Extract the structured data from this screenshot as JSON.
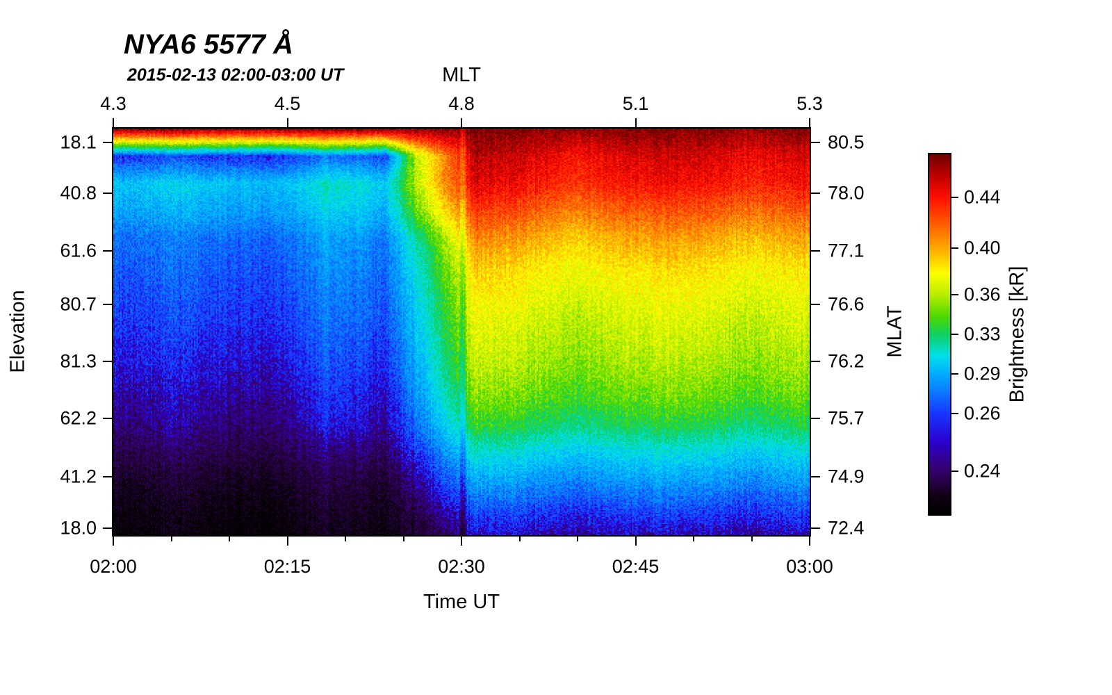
{
  "title": "NYA6 5577 Å",
  "subtitle": "2015-02-13 02:00-03:00 UT",
  "axes": {
    "top": {
      "label": "MLT",
      "ticks": [
        "4.3",
        "4.5",
        "4.8",
        "5.1",
        "5.3"
      ],
      "fracs": [
        0,
        0.25,
        0.5,
        0.75,
        1
      ]
    },
    "bottom": {
      "label": "Time UT",
      "ticks": [
        "02:00",
        "02:15",
        "02:30",
        "02:45",
        "03:00"
      ],
      "fracs": [
        0,
        0.25,
        0.5,
        0.75,
        1
      ]
    },
    "left": {
      "label": "Elevation",
      "ticks": [
        "18.1",
        "40.8",
        "61.6",
        "80.7",
        "81.3",
        "62.2",
        "41.2",
        "18.0"
      ],
      "fracs": [
        0.034,
        0.159,
        0.3,
        0.433,
        0.573,
        0.713,
        0.856,
        0.983
      ]
    },
    "right": {
      "label": "MLAT",
      "ticks": [
        "80.5",
        "78.0",
        "77.1",
        "76.6",
        "76.2",
        "75.7",
        "74.9",
        "72.4"
      ],
      "fracs": [
        0.034,
        0.159,
        0.3,
        0.433,
        0.573,
        0.713,
        0.856,
        0.983
      ]
    }
  },
  "colorbar": {
    "label": "Brightness [kR]",
    "ticks": [
      {
        "label": "0.44",
        "frac_top": 0.12
      },
      {
        "label": "0.40",
        "frac_top": 0.26
      },
      {
        "label": "0.36",
        "frac_top": 0.39
      },
      {
        "label": "0.33",
        "frac_top": 0.5
      },
      {
        "label": "0.29",
        "frac_top": 0.61
      },
      {
        "label": "0.26",
        "frac_top": 0.72
      },
      {
        "label": "0.24",
        "frac_top": 0.88
      }
    ]
  },
  "chart_data": {
    "type": "heatmap",
    "title": "NYA6 5577 Å",
    "subtitle": "2015-02-13 02:00-03:00 UT",
    "value_label": "Brightness [kR]",
    "x_axis": {
      "label": "Time UT",
      "start": "02:00",
      "end": "03:00",
      "mlt_start": 4.3,
      "mlt_end": 5.3
    },
    "y_axis": {
      "label": "Elevation",
      "tick_labels": [
        "18.1",
        "40.8",
        "61.6",
        "80.7",
        "81.3",
        "62.2",
        "41.2",
        "18.0"
      ],
      "mlat_tick_labels": [
        "80.5",
        "78.0",
        "77.1",
        "76.6",
        "76.2",
        "75.7",
        "74.9",
        "72.4"
      ]
    },
    "value_anchors": [
      [
        0.205,
        0
      ],
      [
        0.22,
        0.06
      ],
      [
        0.24,
        0.12
      ],
      [
        0.26,
        0.28
      ],
      [
        0.29,
        0.39
      ],
      [
        0.33,
        0.5
      ],
      [
        0.36,
        0.61
      ],
      [
        0.4,
        0.74
      ],
      [
        0.44,
        0.88
      ],
      [
        0.475,
        1
      ]
    ],
    "colormap": [
      [
        0,
        "#000000"
      ],
      [
        0.05,
        "#120016"
      ],
      [
        0.12,
        "#35006a"
      ],
      [
        0.2,
        "#2b00cf"
      ],
      [
        0.28,
        "#1736ff"
      ],
      [
        0.34,
        "#0b7bff"
      ],
      [
        0.39,
        "#00acff"
      ],
      [
        0.44,
        "#00e0e8"
      ],
      [
        0.5,
        "#0fd060"
      ],
      [
        0.55,
        "#4fd800"
      ],
      [
        0.61,
        "#b8ec00"
      ],
      [
        0.67,
        "#fdfd00"
      ],
      [
        0.74,
        "#ffa800"
      ],
      [
        0.81,
        "#ff5a00"
      ],
      [
        0.88,
        "#ff1000"
      ],
      [
        0.94,
        "#c00000"
      ],
      [
        1,
        "#700000"
      ]
    ],
    "grid_kR": [
      [
        0.468,
        0.467,
        0.469,
        0.468,
        0.466,
        0.466,
        0.468,
        0.47,
        0.469,
        0.468,
        0.469,
        0.47,
        0.474,
        0.472,
        0.47,
        0.466,
        0.468,
        0.47,
        0.471,
        0.472,
        0.47,
        0.467,
        0.468,
        0.472
      ],
      [
        0.26,
        0.259,
        0.265,
        0.26,
        0.258,
        0.257,
        0.26,
        0.274,
        0.271,
        0.262,
        0.36,
        0.41,
        0.46,
        0.455,
        0.45,
        0.44,
        0.445,
        0.45,
        0.452,
        0.455,
        0.45,
        0.445,
        0.447,
        0.452
      ],
      [
        0.3,
        0.298,
        0.305,
        0.3,
        0.296,
        0.295,
        0.298,
        0.314,
        0.311,
        0.3,
        0.36,
        0.41,
        0.45,
        0.445,
        0.44,
        0.43,
        0.435,
        0.44,
        0.442,
        0.445,
        0.44,
        0.435,
        0.437,
        0.443
      ],
      [
        0.29,
        0.289,
        0.294,
        0.29,
        0.287,
        0.286,
        0.289,
        0.304,
        0.301,
        0.291,
        0.345,
        0.39,
        0.43,
        0.425,
        0.42,
        0.41,
        0.415,
        0.42,
        0.422,
        0.425,
        0.42,
        0.415,
        0.417,
        0.422
      ],
      [
        0.275,
        0.274,
        0.279,
        0.275,
        0.272,
        0.271,
        0.275,
        0.289,
        0.286,
        0.277,
        0.32,
        0.36,
        0.41,
        0.405,
        0.4,
        0.39,
        0.395,
        0.4,
        0.402,
        0.405,
        0.4,
        0.395,
        0.397,
        0.402
      ],
      [
        0.27,
        0.269,
        0.274,
        0.27,
        0.267,
        0.266,
        0.27,
        0.284,
        0.281,
        0.272,
        0.31,
        0.35,
        0.393,
        0.39,
        0.385,
        0.377,
        0.381,
        0.385,
        0.387,
        0.39,
        0.385,
        0.38,
        0.382,
        0.387
      ],
      [
        0.266,
        0.265,
        0.27,
        0.266,
        0.263,
        0.262,
        0.266,
        0.28,
        0.277,
        0.268,
        0.304,
        0.342,
        0.383,
        0.38,
        0.375,
        0.368,
        0.372,
        0.375,
        0.377,
        0.38,
        0.375,
        0.37,
        0.372,
        0.377
      ],
      [
        0.262,
        0.261,
        0.266,
        0.262,
        0.259,
        0.258,
        0.262,
        0.276,
        0.273,
        0.264,
        0.299,
        0.336,
        0.375,
        0.372,
        0.368,
        0.36,
        0.364,
        0.368,
        0.37,
        0.372,
        0.368,
        0.363,
        0.365,
        0.37
      ],
      [
        0.257,
        0.256,
        0.261,
        0.257,
        0.254,
        0.253,
        0.257,
        0.271,
        0.268,
        0.259,
        0.294,
        0.33,
        0.369,
        0.366,
        0.362,
        0.355,
        0.358,
        0.362,
        0.364,
        0.366,
        0.362,
        0.357,
        0.359,
        0.364
      ],
      [
        0.252,
        0.251,
        0.256,
        0.252,
        0.249,
        0.248,
        0.252,
        0.266,
        0.263,
        0.254,
        0.288,
        0.324,
        0.362,
        0.359,
        0.355,
        0.348,
        0.351,
        0.355,
        0.357,
        0.359,
        0.355,
        0.35,
        0.352,
        0.357
      ],
      [
        0.246,
        0.245,
        0.25,
        0.246,
        0.243,
        0.242,
        0.246,
        0.26,
        0.257,
        0.248,
        0.281,
        0.315,
        0.352,
        0.349,
        0.345,
        0.338,
        0.341,
        0.345,
        0.347,
        0.349,
        0.345,
        0.34,
        0.342,
        0.347
      ],
      [
        0.241,
        0.24,
        0.245,
        0.241,
        0.238,
        0.237,
        0.241,
        0.255,
        0.252,
        0.243,
        0.272,
        0.303,
        0.337,
        0.334,
        0.33,
        0.323,
        0.326,
        0.33,
        0.332,
        0.334,
        0.33,
        0.325,
        0.327,
        0.332
      ],
      [
        0.232,
        0.231,
        0.236,
        0.232,
        0.229,
        0.228,
        0.232,
        0.241,
        0.239,
        0.234,
        0.258,
        0.283,
        0.311,
        0.308,
        0.305,
        0.298,
        0.301,
        0.305,
        0.307,
        0.308,
        0.305,
        0.3,
        0.302,
        0.307
      ],
      [
        0.222,
        0.221,
        0.226,
        0.222,
        0.219,
        0.218,
        0.222,
        0.231,
        0.229,
        0.224,
        0.244,
        0.266,
        0.29,
        0.288,
        0.285,
        0.279,
        0.282,
        0.285,
        0.287,
        0.288,
        0.285,
        0.28,
        0.282,
        0.287
      ],
      [
        0.215,
        0.214,
        0.219,
        0.215,
        0.212,
        0.211,
        0.215,
        0.224,
        0.222,
        0.217,
        0.232,
        0.25,
        0.269,
        0.267,
        0.265,
        0.26,
        0.262,
        0.265,
        0.267,
        0.268,
        0.265,
        0.261,
        0.263,
        0.267
      ],
      [
        0.21,
        0.209,
        0.214,
        0.21,
        0.207,
        0.206,
        0.21,
        0.219,
        0.217,
        0.212,
        0.223,
        0.236,
        0.251,
        0.25,
        0.248,
        0.244,
        0.246,
        0.248,
        0.249,
        0.25,
        0.248,
        0.245,
        0.246,
        0.249
      ]
    ]
  }
}
